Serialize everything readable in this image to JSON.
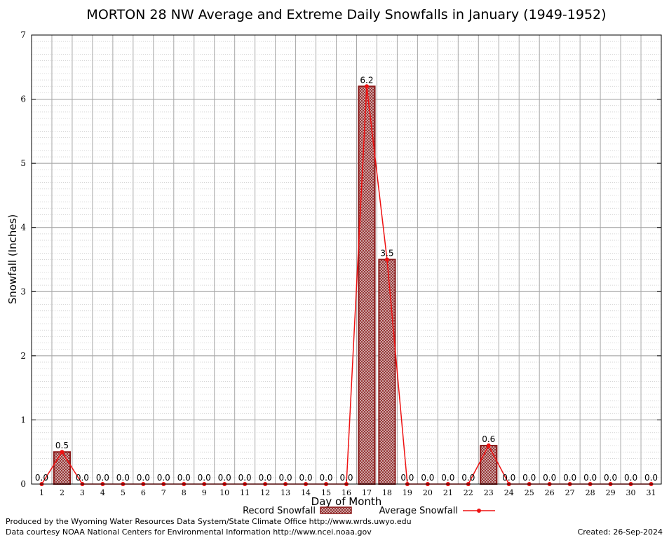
{
  "chart_data": {
    "type": "bar",
    "title": "MORTON 28 NW Average and Extreme Daily Snowfalls in January (1949-1952)",
    "xlabel": "Day of Month",
    "ylabel": "Snowfall (Inches)",
    "ylim": [
      0,
      7
    ],
    "yticks": [
      "0",
      "1",
      "2",
      "3",
      "4",
      "5",
      "6",
      "7"
    ],
    "categories": [
      "1",
      "2",
      "3",
      "4",
      "5",
      "6",
      "7",
      "8",
      "9",
      "10",
      "11",
      "12",
      "13",
      "14",
      "15",
      "16",
      "17",
      "18",
      "19",
      "20",
      "21",
      "22",
      "23",
      "24",
      "25",
      "26",
      "27",
      "28",
      "29",
      "30",
      "31"
    ],
    "series": [
      {
        "name": "Record Snowfall",
        "type": "bar",
        "values": [
          0,
          0.5,
          0,
          0,
          0,
          0,
          0,
          0,
          0,
          0,
          0,
          0,
          0,
          0,
          0,
          0,
          6.2,
          3.5,
          0,
          0,
          0,
          0,
          0.6,
          0,
          0,
          0,
          0,
          0,
          0,
          0,
          0
        ],
        "color": "#8b1a1a"
      },
      {
        "name": "Average Snowfall",
        "type": "line",
        "values": [
          0,
          0.5,
          0,
          0,
          0,
          0,
          0,
          0,
          0,
          0,
          0,
          0,
          0,
          0,
          0,
          0,
          6.2,
          3.5,
          0,
          0,
          0,
          0,
          0.6,
          0,
          0,
          0,
          0,
          0,
          0,
          0,
          0
        ],
        "color": "#ee1111"
      }
    ],
    "data_labels": [
      "0.0",
      "0.5",
      "0.0",
      "0.0",
      "0.0",
      "0.0",
      "0.0",
      "0.0",
      "0.0",
      "0.0",
      "0.0",
      "0.0",
      "0.0",
      "0.0",
      "0.0",
      "0.0",
      "6.2",
      "3.5",
      "0.0",
      "0.0",
      "0.0",
      "0.0",
      "0.6",
      "0.0",
      "0.0",
      "0.0",
      "0.0",
      "0.0",
      "0.0",
      "0.0",
      "0.0"
    ],
    "grid": true,
    "legend": "bottom"
  },
  "footer": {
    "produced_by": "Produced by the Wyoming Water Resources Data System/State Climate Office http://www.wrds.uwyo.edu",
    "courtesy": "Data courtesy NOAA National Centers for Environmental Information http://www.ncei.noaa.gov",
    "created": "Created: 26-Sep-2024"
  }
}
